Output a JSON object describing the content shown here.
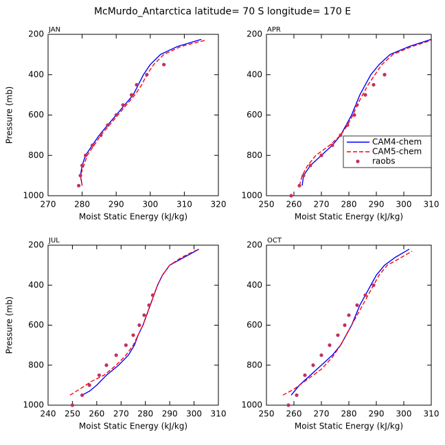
{
  "title": "McMurdo_Antarctica  latitude= 70 S longitude= 170 E",
  "chart_data": [
    {
      "type": "line",
      "label": "JAN",
      "x_label": "Moist Static Energy (kJ/kg)",
      "y_label": "Pressure (mb)",
      "xlim": [
        270,
        320
      ],
      "xticks": [
        270,
        280,
        290,
        300,
        310,
        320
      ],
      "ylim": [
        1000,
        200
      ],
      "yticks": [
        200,
        400,
        600,
        800,
        1000
      ],
      "series": [
        {
          "color": "#0000ff",
          "linestyle": "solid",
          "x": [
            280,
            279.5,
            280,
            281,
            283,
            285,
            287.5,
            290,
            292.5,
            295,
            296.5,
            298,
            300,
            303,
            308,
            315
          ],
          "y": [
            950,
            900,
            850,
            800,
            750,
            700,
            650,
            600,
            550,
            500,
            450,
            400,
            350,
            300,
            260,
            225
          ]
        },
        {
          "color": "#ff0000",
          "linestyle": "dashed",
          "x": [
            280,
            279.5,
            280.5,
            281.5,
            283.5,
            285.5,
            288,
            290.5,
            293,
            295.5,
            297.5,
            299,
            301,
            304,
            309,
            316
          ],
          "y": [
            950,
            900,
            850,
            800,
            750,
            700,
            650,
            600,
            550,
            500,
            450,
            400,
            350,
            300,
            260,
            230
          ]
        },
        {
          "color": "#c03060",
          "linestyle": "none",
          "marker": "circle",
          "x": [
            279,
            279.5,
            280,
            281,
            283,
            285.5,
            287.5,
            290,
            292,
            294.5,
            296,
            299,
            304
          ],
          "y": [
            950,
            900,
            850,
            800,
            750,
            700,
            650,
            600,
            550,
            500,
            450,
            400,
            350
          ]
        }
      ]
    },
    {
      "type": "line",
      "label": "APR",
      "x_label": "Moist Static Energy (kJ/kg)",
      "legend": "lower right",
      "xlim": [
        250,
        310
      ],
      "xticks": [
        250,
        260,
        270,
        280,
        290,
        300,
        310
      ],
      "ylim": [
        1000,
        200
      ],
      "yticks": [
        200,
        400,
        600,
        800,
        1000
      ],
      "series": [
        {
          "name": "CAM4-chem",
          "color": "#0000ff",
          "linestyle": "solid",
          "x": [
            263,
            263.5,
            266,
            270,
            274,
            277,
            279,
            281,
            282.5,
            284,
            286,
            288,
            291,
            295,
            302,
            310
          ],
          "y": [
            950,
            900,
            850,
            800,
            750,
            700,
            650,
            600,
            550,
            500,
            450,
            400,
            350,
            300,
            260,
            225
          ]
        },
        {
          "name": "CAM5-chem",
          "color": "#ff0000",
          "linestyle": "dashed",
          "x": [
            262,
            263,
            265,
            268,
            273,
            277,
            279.5,
            281.5,
            283,
            285,
            287,
            289.5,
            292,
            296,
            303,
            310
          ],
          "y": [
            950,
            900,
            850,
            800,
            750,
            700,
            650,
            600,
            550,
            500,
            450,
            400,
            350,
            300,
            260,
            230
          ]
        },
        {
          "name": "raobs",
          "color": "#c03060",
          "linestyle": "none",
          "marker": "circle",
          "x": [
            259,
            262,
            263.5,
            266,
            270,
            274,
            277,
            279.5,
            282,
            283,
            286,
            289,
            293
          ],
          "y": [
            1000,
            950,
            900,
            850,
            800,
            750,
            700,
            650,
            600,
            550,
            500,
            450,
            400
          ]
        }
      ]
    },
    {
      "type": "line",
      "label": "JUL",
      "x_label": "Moist Static Energy (kJ/kg)",
      "y_label": "Pressure (mb)",
      "xlim": [
        240,
        310
      ],
      "xticks": [
        240,
        250,
        260,
        270,
        280,
        290,
        300,
        310
      ],
      "ylim": [
        1000,
        200
      ],
      "yticks": [
        200,
        400,
        600,
        800,
        1000
      ],
      "series": [
        {
          "color": "#0000ff",
          "linestyle": "solid",
          "x": [
            254,
            257,
            260,
            264,
            269,
            273,
            275.5,
            277,
            279,
            280.5,
            282,
            283.5,
            285,
            287,
            290,
            296,
            302
          ],
          "y": [
            950,
            930,
            900,
            850,
            800,
            750,
            700,
            650,
            600,
            550,
            500,
            450,
            400,
            350,
            300,
            260,
            220
          ]
        },
        {
          "color": "#ff0000",
          "linestyle": "dashed",
          "x": [
            249,
            253,
            258,
            263,
            268,
            272,
            275,
            277,
            279,
            280.5,
            282,
            283.5,
            285,
            287,
            290,
            295,
            301
          ],
          "y": [
            950,
            920,
            880,
            850,
            800,
            750,
            700,
            650,
            600,
            550,
            500,
            450,
            400,
            350,
            300,
            260,
            225
          ]
        },
        {
          "color": "#c03060",
          "linestyle": "none",
          "marker": "circle",
          "x": [
            250,
            254,
            257,
            261,
            264,
            268,
            272,
            275,
            277.5,
            279.5,
            281.5,
            283
          ],
          "y": [
            1000,
            950,
            900,
            850,
            800,
            750,
            700,
            650,
            600,
            550,
            500,
            450
          ]
        }
      ]
    },
    {
      "type": "line",
      "label": "OCT",
      "x_label": "Moist Static Energy (kJ/kg)",
      "xlim": [
        250,
        310
      ],
      "xticks": [
        250,
        260,
        270,
        280,
        290,
        300,
        310
      ],
      "ylim": [
        1000,
        200
      ],
      "yticks": [
        200,
        400,
        600,
        800,
        1000
      ],
      "series": [
        {
          "color": "#0000ff",
          "linestyle": "solid",
          "x": [
            259,
            262,
            266,
            270,
            274,
            277,
            279,
            281,
            282.5,
            284,
            286,
            288,
            290,
            293,
            297,
            302
          ],
          "y": [
            950,
            900,
            850,
            800,
            750,
            700,
            650,
            600,
            550,
            500,
            450,
            400,
            350,
            300,
            260,
            220
          ]
        },
        {
          "color": "#ff0000",
          "linestyle": "dashed",
          "x": [
            256,
            260,
            265,
            270,
            274,
            277,
            279,
            281,
            283,
            285,
            287,
            289,
            291,
            294,
            298,
            303
          ],
          "y": [
            950,
            920,
            870,
            820,
            760,
            700,
            650,
            600,
            550,
            500,
            450,
            400,
            350,
            300,
            270,
            230
          ]
        },
        {
          "color": "#c03060",
          "linestyle": "none",
          "marker": "circle",
          "x": [
            258,
            261,
            264,
            267,
            270,
            273,
            276,
            278.5,
            280,
            283,
            286,
            289
          ],
          "y": [
            1000,
            950,
            850,
            800,
            750,
            700,
            650,
            600,
            550,
            500,
            450,
            400
          ]
        }
      ]
    }
  ]
}
